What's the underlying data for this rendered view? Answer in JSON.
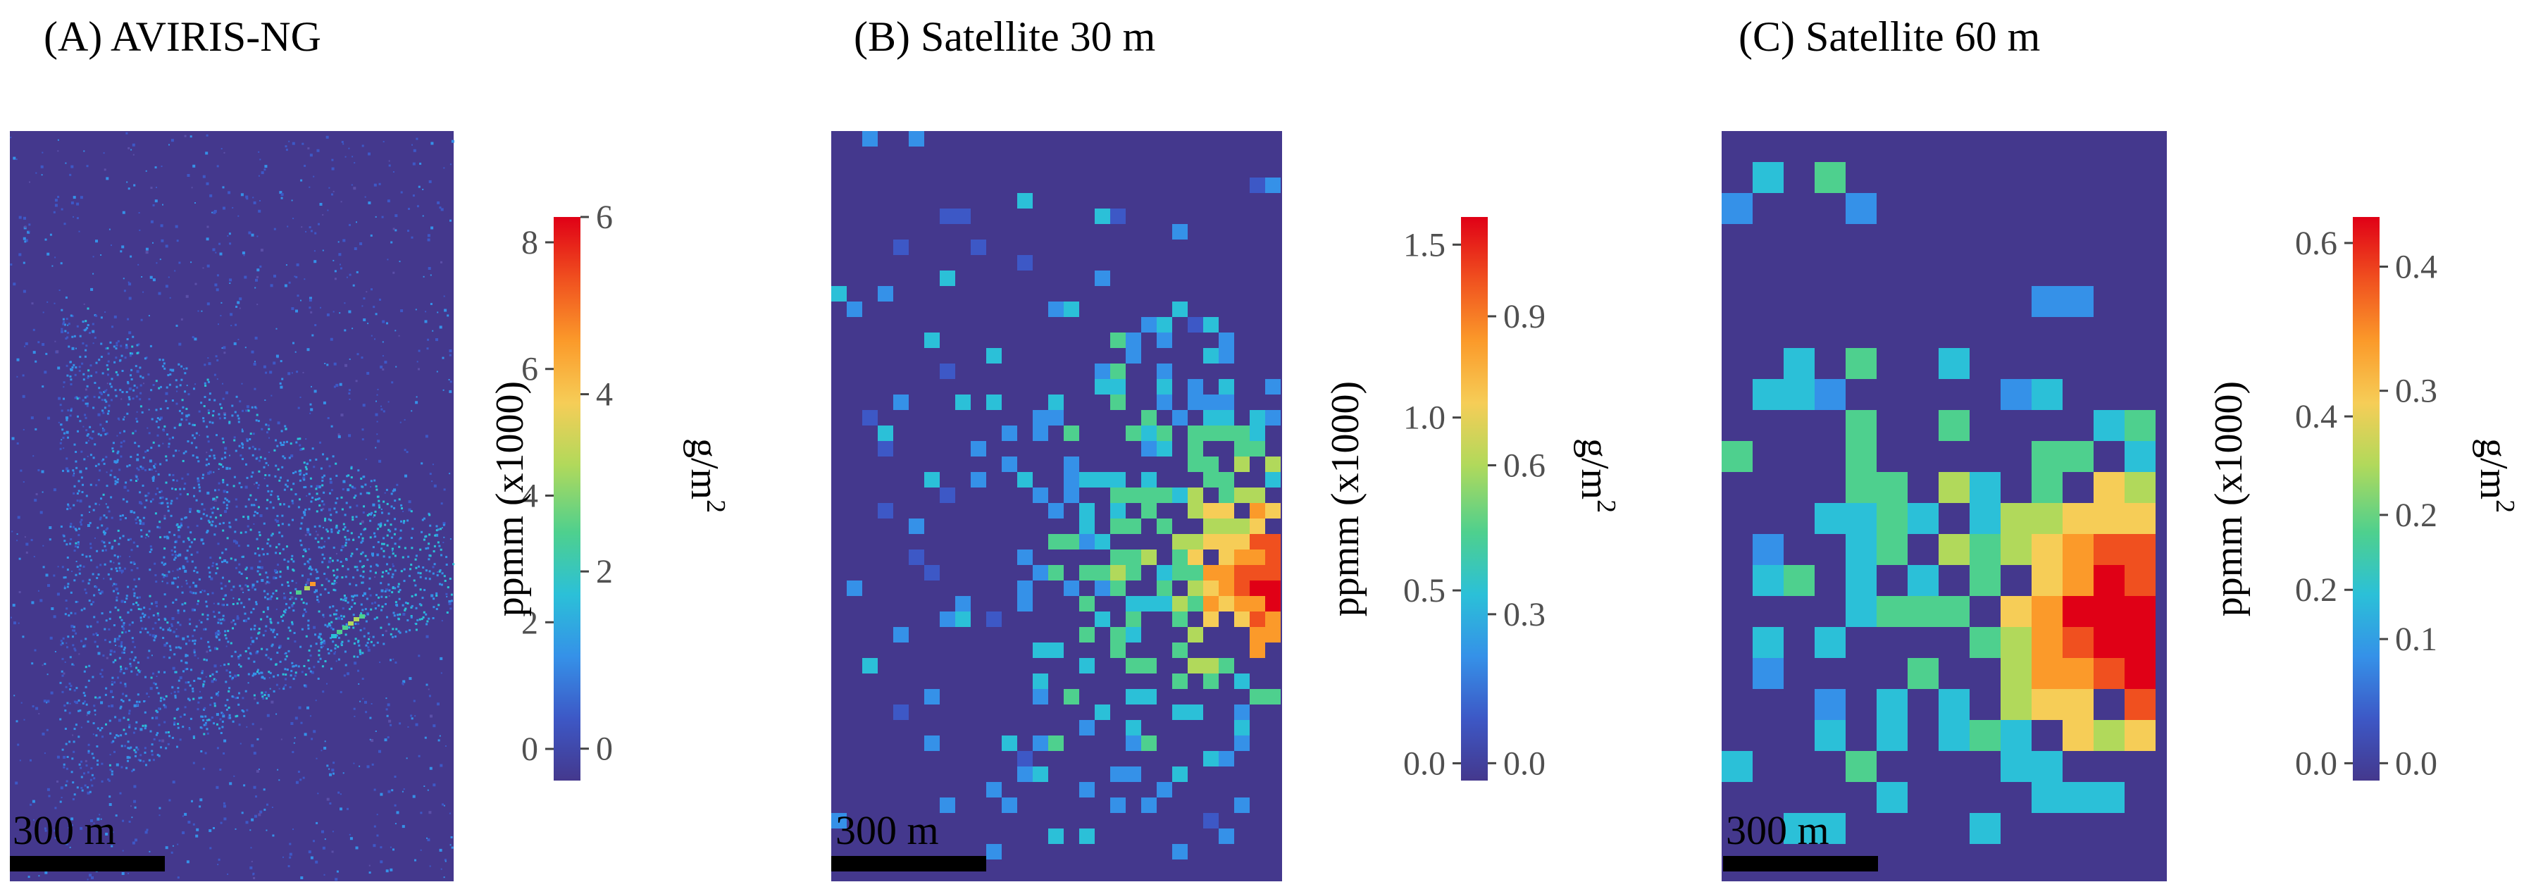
{
  "chart_data": [
    {
      "type": "heatmap",
      "title": "(A) AVIRIS-NG",
      "scale_bar_label": "300 m",
      "colorbar_left": {
        "label": "ppmm (x1000)",
        "ticks": [
          0,
          2,
          4,
          6,
          8
        ],
        "range": [
          -0.5,
          8.4
        ]
      },
      "colorbar_right": {
        "label": "g/m",
        "label_superscript": "2",
        "ticks": [
          0,
          2,
          4,
          6
        ],
        "range": [
          -0.36,
          6.0
        ]
      },
      "colors": [
        "#44388d",
        "#3d58c6",
        "#3591e8",
        "#2bc0d8",
        "#4ed08e",
        "#b1d95b",
        "#f6cd57",
        "#fb9a2a",
        "#f0501f",
        "#e00016"
      ]
    },
    {
      "type": "heatmap",
      "title": "(B) Satellite 30 m",
      "scale_bar_label": "300 m",
      "colorbar_left": {
        "label": "ppmm (x1000)",
        "ticks": [
          "0.0",
          "0.5",
          "1.0",
          "1.5"
        ],
        "range": [
          -0.05,
          1.58
        ]
      },
      "colorbar_right": {
        "label": "g/m",
        "label_superscript": "2",
        "ticks": [
          "0.0",
          "0.3",
          "0.6",
          "0.9"
        ],
        "range": [
          -0.035,
          1.1
        ]
      },
      "colors": [
        "#44388d",
        "#3d58c6",
        "#3591e8",
        "#2bc0d8",
        "#4ed08e",
        "#b1d95b",
        "#f6cd57",
        "#fb9a2a",
        "#f0501f",
        "#e00016"
      ]
    },
    {
      "type": "heatmap",
      "title": "(C) Satellite 60 m",
      "scale_bar_label": "300 m",
      "colorbar_left": {
        "label": "ppmm (x1000)",
        "ticks": [
          "0.0",
          "0.2",
          "0.4",
          "0.6"
        ],
        "range": [
          -0.02,
          0.63
        ]
      },
      "colorbar_right": {
        "label": "g/m",
        "label_superscript": "2",
        "ticks": [
          "0.0",
          "0.1",
          "0.2",
          "0.3",
          "0.4"
        ],
        "range": [
          -0.014,
          0.44
        ]
      },
      "colors": [
        "#44388d",
        "#3d58c6",
        "#3591e8",
        "#2bc0d8",
        "#4ed08e",
        "#b1d95b",
        "#f6cd57",
        "#fb9a2a",
        "#f0501f",
        "#e00016"
      ]
    }
  ]
}
